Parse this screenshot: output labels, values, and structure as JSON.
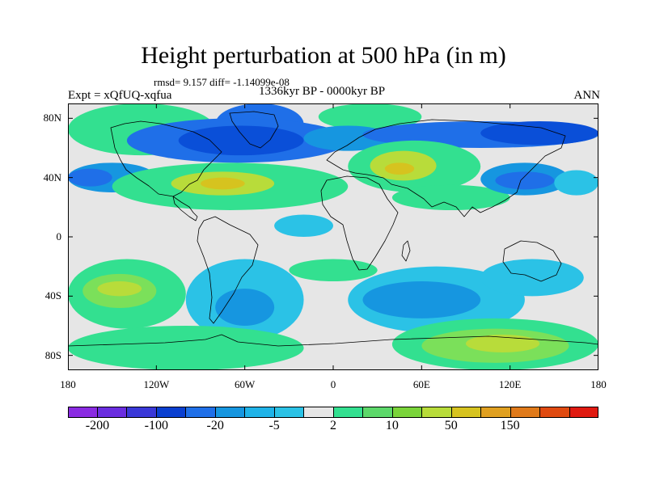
{
  "title": "Height perturbation at 500 hPa (in m)",
  "stats": "rmsd= 9.157 diff= -1.14099e-08",
  "period": "1336kyr BP - 0000kyr BP",
  "experiment": "Expt = xQfUQ-xqfua",
  "season": "ANN",
  "map": {
    "projection": "cylindrical-equidistant",
    "lon_range": [
      -180,
      180
    ],
    "lat_range": [
      -90,
      90
    ],
    "land_outline_color": "#000000",
    "fill_regions": [
      {
        "lon": [
          -180,
          180
        ],
        "lat": [
          -90,
          90
        ],
        "level": 0
      },
      {
        "lon": [
          -180,
          -80
        ],
        "lat": [
          55,
          90
        ],
        "level": 1
      },
      {
        "lon": [
          -80,
          -20
        ],
        "lat": [
          62,
          90
        ],
        "level": -3
      },
      {
        "lon": [
          -140,
          10
        ],
        "lat": [
          50,
          80
        ],
        "level": -3
      },
      {
        "lon": [
          -105,
          -20
        ],
        "lat": [
          55,
          75
        ],
        "level": -4
      },
      {
        "lon": [
          -10,
          60
        ],
        "lat": [
          72,
          90
        ],
        "level": 1
      },
      {
        "lon": [
          -20,
          40
        ],
        "lat": [
          58,
          75
        ],
        "level": -2
      },
      {
        "lon": [
          20,
          180
        ],
        "lat": [
          60,
          78
        ],
        "level": -3
      },
      {
        "lon": [
          100,
          180
        ],
        "lat": [
          62,
          78
        ],
        "level": -4
      },
      {
        "lon": [
          -180,
          -120
        ],
        "lat": [
          30,
          50
        ],
        "level": -2
      },
      {
        "lon": [
          -180,
          -150
        ],
        "lat": [
          34,
          46
        ],
        "level": -3
      },
      {
        "lon": [
          -150,
          10
        ],
        "lat": [
          18,
          50
        ],
        "level": 1
      },
      {
        "lon": [
          -110,
          -40
        ],
        "lat": [
          28,
          44
        ],
        "level": 3
      },
      {
        "lon": [
          -90,
          -60
        ],
        "lat": [
          32,
          40
        ],
        "level": 4
      },
      {
        "lon": [
          10,
          100
        ],
        "lat": [
          30,
          65
        ],
        "level": 1
      },
      {
        "lon": [
          25,
          70
        ],
        "lat": [
          38,
          58
        ],
        "level": 3
      },
      {
        "lon": [
          35,
          55
        ],
        "lat": [
          42,
          50
        ],
        "level": 4
      },
      {
        "lon": [
          -40,
          0
        ],
        "lat": [
          0,
          15
        ],
        "level": -1
      },
      {
        "lon": [
          40,
          120
        ],
        "lat": [
          18,
          35
        ],
        "level": 1
      },
      {
        "lon": [
          100,
          160
        ],
        "lat": [
          28,
          50
        ],
        "level": -2
      },
      {
        "lon": [
          110,
          150
        ],
        "lat": [
          32,
          44
        ],
        "level": -3
      },
      {
        "lon": [
          150,
          180
        ],
        "lat": [
          28,
          45
        ],
        "level": -1
      },
      {
        "lon": [
          -180,
          -100
        ],
        "lat": [
          -62,
          -15
        ],
        "level": 1
      },
      {
        "lon": [
          -170,
          -120
        ],
        "lat": [
          -48,
          -25
        ],
        "level": 2
      },
      {
        "lon": [
          -160,
          -130
        ],
        "lat": [
          -40,
          -30
        ],
        "level": 3
      },
      {
        "lon": [
          -100,
          -20
        ],
        "lat": [
          -70,
          -15
        ],
        "level": -1
      },
      {
        "lon": [
          -80,
          -40
        ],
        "lat": [
          -60,
          -35
        ],
        "level": -2
      },
      {
        "lon": [
          -30,
          30
        ],
        "lat": [
          -30,
          -15
        ],
        "level": 1
      },
      {
        "lon": [
          10,
          130
        ],
        "lat": [
          -65,
          -20
        ],
        "level": -1
      },
      {
        "lon": [
          20,
          100
        ],
        "lat": [
          -55,
          -30
        ],
        "level": -2
      },
      {
        "lon": [
          100,
          170
        ],
        "lat": [
          -40,
          -15
        ],
        "level": -1
      },
      {
        "lon": [
          40,
          180
        ],
        "lat": [
          -90,
          -55
        ],
        "level": 1
      },
      {
        "lon": [
          60,
          160
        ],
        "lat": [
          -85,
          -62
        ],
        "level": 2
      },
      {
        "lon": [
          90,
          140
        ],
        "lat": [
          -78,
          -66
        ],
        "level": 3
      },
      {
        "lon": [
          -180,
          -20
        ],
        "lat": [
          -90,
          -60
        ],
        "level": 1
      }
    ],
    "level_colors": {
      "-4": "#0a4fd8",
      "-3": "#1f6fe8",
      "-2": "#1696e0",
      "-1": "#2bc2e6",
      "0": "#e6e6e6",
      "1": "#33e090",
      "2": "#7be05a",
      "3": "#b8dc3a",
      "4": "#d6c31f"
    },
    "lat_ticks": [
      {
        "value": 80,
        "label": "80N"
      },
      {
        "value": 40,
        "label": "40N"
      },
      {
        "value": 0,
        "label": "0"
      },
      {
        "value": -40,
        "label": "40S"
      },
      {
        "value": -80,
        "label": "80S"
      }
    ],
    "lon_ticks": [
      {
        "value": -180,
        "label": "180"
      },
      {
        "value": -120,
        "label": "120W"
      },
      {
        "value": -60,
        "label": "60W"
      },
      {
        "value": 0,
        "label": "0"
      },
      {
        "value": 60,
        "label": "60E"
      },
      {
        "value": 120,
        "label": "120E"
      },
      {
        "value": 180,
        "label": "180"
      }
    ]
  },
  "colorbar": {
    "colors": [
      "#8a2be2",
      "#6a2de0",
      "#3a38d8",
      "#0a3fd0",
      "#1f6fe8",
      "#1696e0",
      "#1fb3e8",
      "#2bc2e6",
      "#e6e6e6",
      "#33e090",
      "#5cd86a",
      "#7ad43a",
      "#b8dc3a",
      "#d6c31f",
      "#e0a020",
      "#e07a1a",
      "#e04a10",
      "#e01a10"
    ],
    "labels": [
      {
        "boundary": 1,
        "label": "-200"
      },
      {
        "boundary": 3,
        "label": "-100"
      },
      {
        "boundary": 5,
        "label": "-20"
      },
      {
        "boundary": 7,
        "label": "-5"
      },
      {
        "boundary": 9,
        "label": "2"
      },
      {
        "boundary": 11,
        "label": "10"
      },
      {
        "boundary": 13,
        "label": "50"
      },
      {
        "boundary": 15,
        "label": "150"
      }
    ]
  }
}
